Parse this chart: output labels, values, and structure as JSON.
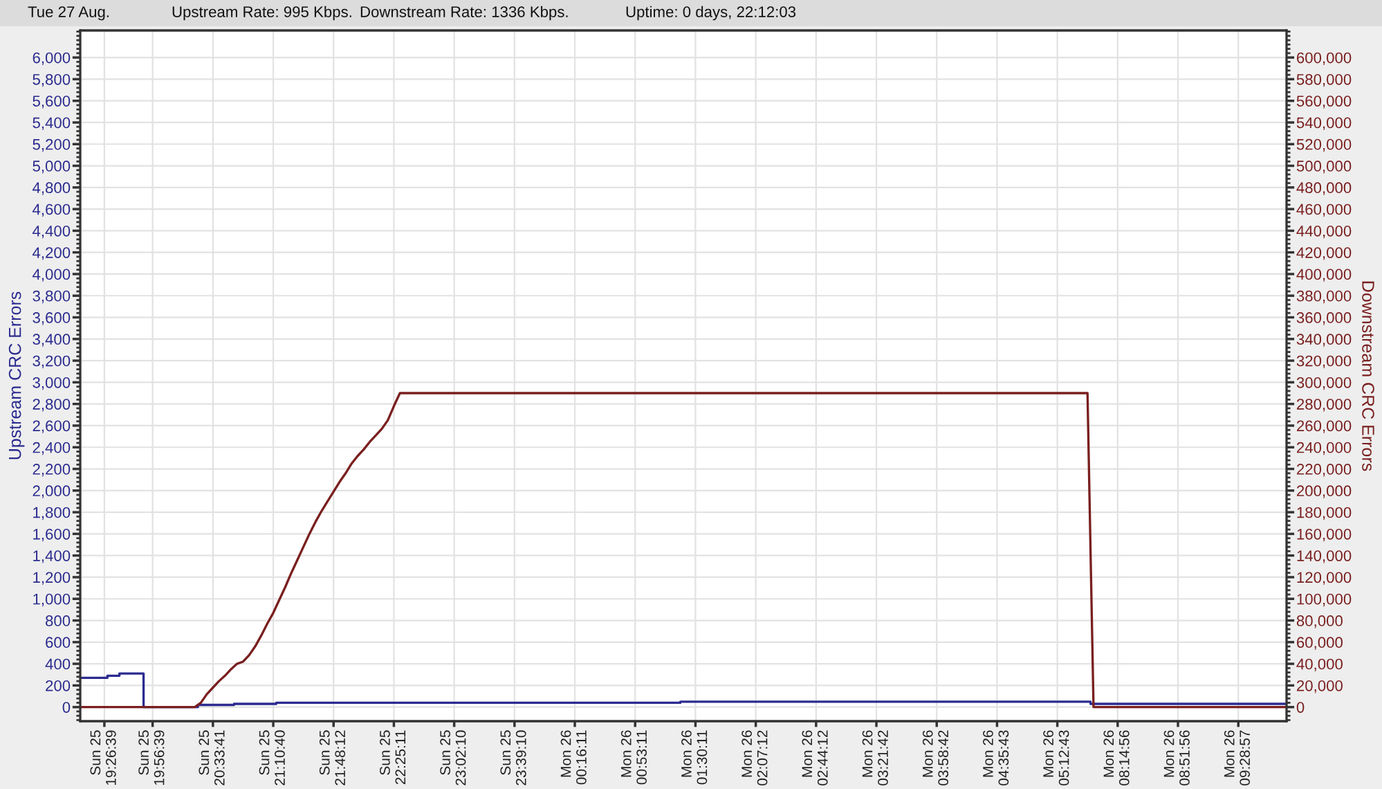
{
  "chart_data": {
    "type": "line",
    "annotations": [
      "Tue 27 Aug.",
      "Upstream Rate: 995 Kbps.",
      "Downstream Rate: 1336 Kbps.",
      "Uptime: 0 days, 22:12:03"
    ],
    "ylabel": "Upstream CRC Errors",
    "y2label": "Downstream CRC Errors",
    "categories": [
      null,
      null,
      null,
      null,
      "Sun 25\n19:26:39",
      null,
      null,
      null,
      null,
      null,
      null,
      null,
      "Sun 25\n19:56:39",
      null,
      null,
      null,
      null,
      null,
      null,
      null,
      null,
      null,
      "Sun 25\n20:33:41",
      null,
      null,
      null,
      null,
      null,
      null,
      null,
      null,
      null,
      "Sun 25\n21:10:40",
      null,
      null,
      null,
      null,
      null,
      null,
      null,
      null,
      null,
      "Sun 25\n21:48:12",
      null,
      null,
      null,
      null,
      null,
      null,
      null,
      null,
      null,
      "Sun 25\n22:25:11",
      null,
      null,
      null,
      null,
      null,
      null,
      null,
      null,
      null,
      "Sun 25\n23:02:10",
      null,
      null,
      null,
      null,
      null,
      null,
      null,
      null,
      null,
      "Sun 25\n23:39:10",
      null,
      null,
      null,
      null,
      null,
      null,
      null,
      null,
      null,
      "Mon 26\n00:16:11",
      null,
      null,
      null,
      null,
      null,
      null,
      null,
      null,
      null,
      "Mon 26\n00:53:11",
      null,
      null,
      null,
      null,
      null,
      null,
      null,
      null,
      null,
      "Mon 26\n01:30:11",
      null,
      null,
      null,
      null,
      null,
      null,
      null,
      null,
      null,
      "Mon 26\n02:07:12",
      null,
      null,
      null,
      null,
      null,
      null,
      null,
      null,
      null,
      "Mon 26\n02:44:12",
      null,
      null,
      null,
      null,
      null,
      null,
      null,
      null,
      null,
      "Mon 26\n03:21:42",
      null,
      null,
      null,
      null,
      null,
      null,
      null,
      null,
      null,
      "Mon 26\n03:58:42",
      null,
      null,
      null,
      null,
      null,
      null,
      null,
      null,
      null,
      "Mon 26\n04:35:43",
      null,
      null,
      null,
      null,
      null,
      null,
      null,
      null,
      null,
      "Mon 26\n05:12:43",
      null,
      null,
      null,
      null,
      null,
      null,
      null,
      null,
      null,
      "Mon 26\n08:14:56",
      null,
      null,
      null,
      null,
      null,
      null,
      null,
      null,
      null,
      "Mon 26\n08:51:56",
      null,
      null,
      null,
      null,
      null,
      null,
      null,
      null,
      null,
      "Mon 26\n09:28:57",
      null,
      null,
      null,
      null,
      null,
      null,
      null,
      null
    ],
    "ylim": [
      -130,
      6250
    ],
    "yticks": [
      0,
      200,
      400,
      600,
      800,
      {
        "value": 1000,
        "label": "1,000"
      },
      {
        "value": 1200,
        "label": "1,200"
      },
      {
        "value": 1400,
        "label": "1,400"
      },
      {
        "value": 1600,
        "label": "1,600"
      },
      {
        "value": 1800,
        "label": "1,800"
      },
      {
        "value": 2000,
        "label": "2,000"
      },
      {
        "value": 2200,
        "label": "2,200"
      },
      {
        "value": 2400,
        "label": "2,400"
      },
      {
        "value": 2600,
        "label": "2,600"
      },
      {
        "value": 2800,
        "label": "2,800"
      },
      {
        "value": 3000,
        "label": "3,000"
      },
      {
        "value": 3200,
        "label": "3,200"
      },
      {
        "value": 3400,
        "label": "3,400"
      },
      {
        "value": 3600,
        "label": "3,600"
      },
      {
        "value": 3800,
        "label": "3,800"
      },
      {
        "value": 4000,
        "label": "4,000"
      },
      {
        "value": 4200,
        "label": "4,200"
      },
      {
        "value": 4400,
        "label": "4,400"
      },
      {
        "value": 4600,
        "label": "4,600"
      },
      {
        "value": 4800,
        "label": "4,800"
      },
      {
        "value": 5000,
        "label": "5,000"
      },
      {
        "value": 5200,
        "label": "5,200"
      },
      {
        "value": 5400,
        "label": "5,400"
      },
      {
        "value": 5600,
        "label": "5,600"
      },
      {
        "value": 5800,
        "label": "5,800"
      },
      {
        "value": 6000,
        "label": "6,000"
      }
    ],
    "y2lim": [
      -13000,
      625000
    ],
    "y2ticks": [
      0,
      {
        "value": 20000,
        "label": "20,000"
      },
      {
        "value": 40000,
        "label": "40,000"
      },
      {
        "value": 60000,
        "label": "60,000"
      },
      {
        "value": 80000,
        "label": "80,000"
      },
      {
        "value": 100000,
        "label": "100,000"
      },
      {
        "value": 120000,
        "label": "120,000"
      },
      {
        "value": 140000,
        "label": "140,000"
      },
      {
        "value": 160000,
        "label": "160,000"
      },
      {
        "value": 180000,
        "label": "180,000"
      },
      {
        "value": 200000,
        "label": "200,000"
      },
      {
        "value": 220000,
        "label": "220,000"
      },
      {
        "value": 240000,
        "label": "240,000"
      },
      {
        "value": 260000,
        "label": "260,000"
      },
      {
        "value": 280000,
        "label": "280,000"
      },
      {
        "value": 300000,
        "label": "300,000"
      },
      {
        "value": 320000,
        "label": "320,000"
      },
      {
        "value": 340000,
        "label": "340,000"
      },
      {
        "value": 360000,
        "label": "360,000"
      },
      {
        "value": 380000,
        "label": "380,000"
      },
      {
        "value": 400000,
        "label": "400,000"
      },
      {
        "value": 420000,
        "label": "420,000"
      },
      {
        "value": 440000,
        "label": "440,000"
      },
      {
        "value": 460000,
        "label": "460,000"
      },
      {
        "value": 480000,
        "label": "480,000"
      },
      {
        "value": 500000,
        "label": "500,000"
      },
      {
        "value": 520000,
        "label": "520,000"
      },
      {
        "value": 540000,
        "label": "540,000"
      },
      {
        "value": 560000,
        "label": "560,000"
      },
      {
        "value": 580000,
        "label": "580,000"
      },
      {
        "value": 600000,
        "label": "600,000"
      }
    ],
    "grid": true,
    "series": [
      {
        "type": "step",
        "color": "#2b2b8f",
        "values": [
          270,
          270,
          270,
          270,
          270,
          290,
          290,
          310,
          310,
          310,
          310,
          0,
          0,
          0,
          0,
          0,
          0,
          0,
          0,
          0,
          20,
          20,
          20,
          20,
          20,
          20,
          30,
          30,
          30,
          30,
          30,
          30,
          30,
          40,
          40,
          40,
          40,
          40,
          40,
          40,
          40,
          40,
          40,
          40,
          40,
          40,
          40,
          40,
          40,
          40,
          40,
          40,
          40,
          40,
          40,
          40,
          40,
          40,
          40,
          40,
          40,
          40,
          40,
          40,
          40,
          40,
          40,
          40,
          40,
          40,
          40,
          40,
          40,
          40,
          40,
          40,
          40,
          40,
          40,
          40,
          40,
          40,
          40,
          40,
          40,
          40,
          40,
          40,
          40,
          40,
          40,
          40,
          40,
          40,
          40,
          40,
          40,
          40,
          40,
          40,
          50,
          50,
          50,
          50,
          50,
          50,
          50,
          50,
          50,
          50,
          50,
          50,
          50,
          50,
          50,
          50,
          50,
          50,
          50,
          50,
          50,
          50,
          50,
          50,
          50,
          50,
          50,
          50,
          50,
          50,
          50,
          50,
          50,
          50,
          50,
          50,
          50,
          50,
          50,
          50,
          50,
          50,
          50,
          50,
          50,
          50,
          50,
          50,
          50,
          50,
          50,
          50,
          50,
          50,
          50,
          50,
          50,
          50,
          50,
          50,
          50,
          50,
          50,
          50,
          50,
          50,
          50,
          50,
          30,
          30,
          30,
          30,
          30,
          30,
          30,
          30,
          30,
          30,
          30,
          30,
          30,
          30,
          30,
          30,
          30,
          30,
          30,
          30,
          30,
          30,
          30,
          30,
          30,
          30,
          30,
          30,
          30,
          30,
          30,
          30,
          30
        ]
      },
      {
        "color": "#7a1f1f",
        "axis": "y2",
        "values": [
          0,
          0,
          0,
          0,
          0,
          0,
          0,
          0,
          0,
          0,
          0,
          0,
          0,
          0,
          0,
          0,
          0,
          0,
          0,
          0,
          4000,
          12000,
          18000,
          24000,
          29000,
          35000,
          40000,
          42000,
          48000,
          56000,
          66000,
          77000,
          87000,
          99000,
          111000,
          124000,
          136000,
          148000,
          160000,
          171000,
          181000,
          190000,
          199000,
          208000,
          216000,
          225000,
          232000,
          238000,
          245000,
          251000,
          257000,
          265000,
          278000,
          290000,
          290000,
          290000,
          290000,
          290000,
          290000,
          290000,
          290000,
          290000,
          290000,
          290000,
          290000,
          290000,
          290000,
          290000,
          290000,
          290000,
          290000,
          290000,
          290000,
          290000,
          290000,
          290000,
          290000,
          290000,
          290000,
          290000,
          290000,
          290000,
          290000,
          290000,
          290000,
          290000,
          290000,
          290000,
          290000,
          290000,
          290000,
          290000,
          290000,
          290000,
          290000,
          290000,
          290000,
          290000,
          290000,
          290000,
          290000,
          290000,
          290000,
          290000,
          290000,
          290000,
          290000,
          290000,
          290000,
          290000,
          290000,
          290000,
          290000,
          290000,
          290000,
          290000,
          290000,
          290000,
          290000,
          290000,
          290000,
          290000,
          290000,
          290000,
          290000,
          290000,
          290000,
          290000,
          290000,
          290000,
          290000,
          290000,
          290000,
          290000,
          290000,
          290000,
          290000,
          290000,
          290000,
          290000,
          290000,
          290000,
          290000,
          290000,
          290000,
          290000,
          290000,
          290000,
          290000,
          290000,
          290000,
          290000,
          290000,
          290000,
          290000,
          290000,
          290000,
          290000,
          290000,
          290000,
          290000,
          290000,
          290000,
          290000,
          290000,
          290000,
          290000,
          290000,
          0,
          0,
          0,
          0,
          0,
          0,
          0,
          0,
          0,
          0,
          0,
          0,
          0,
          0,
          0,
          0,
          0,
          0,
          0,
          0,
          0,
          0,
          0,
          0,
          0,
          0,
          0,
          0,
          0,
          0,
          0,
          0,
          0
        ]
      }
    ]
  }
}
